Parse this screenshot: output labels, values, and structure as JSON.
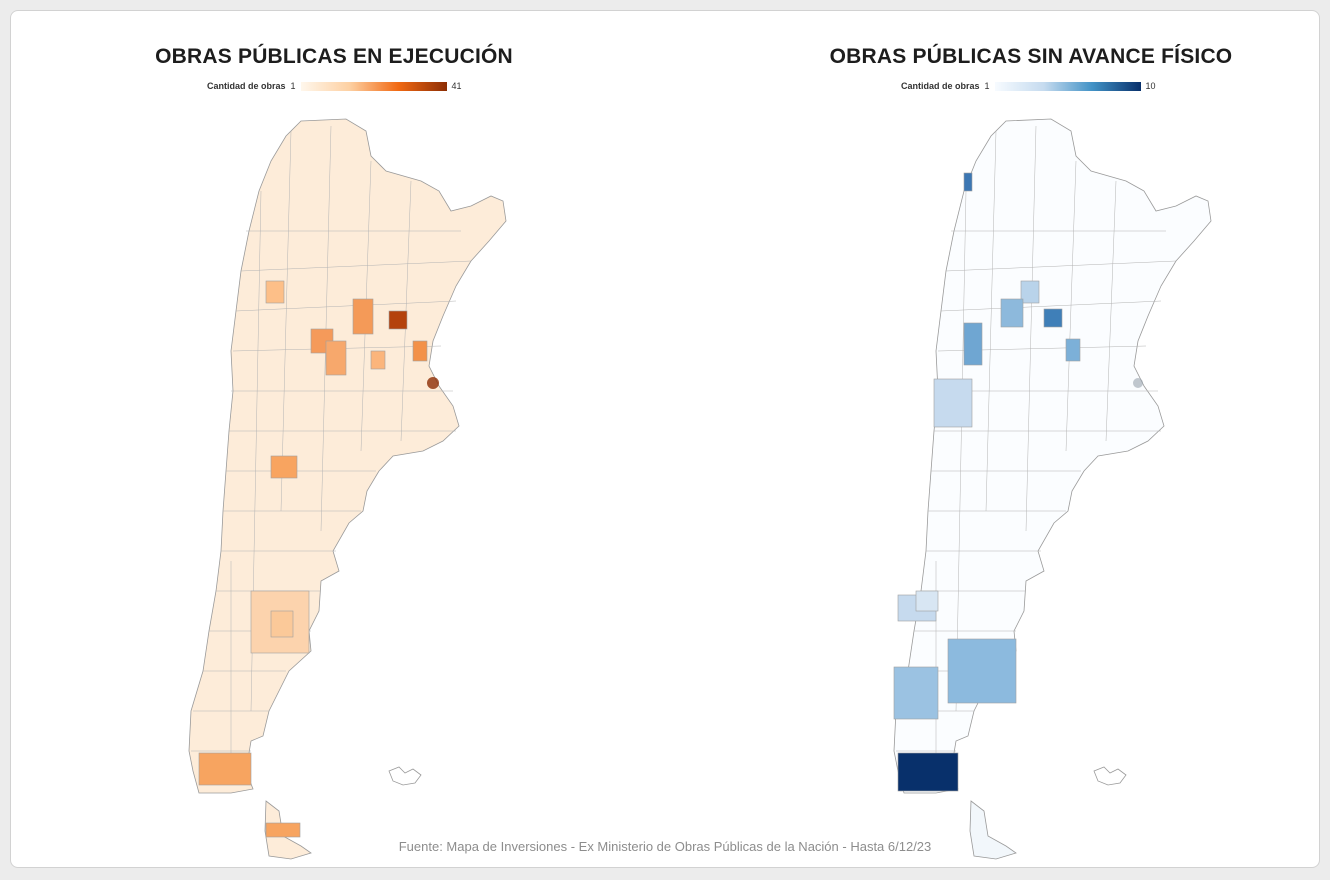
{
  "maps": [
    {
      "title": "OBRAS PÚBLICAS EN EJECUCIÓN",
      "legend_label": "Cantidad de obras",
      "legend_min": "1",
      "legend_max": "41",
      "scale_colors": [
        "#fff7ec",
        "#fdd0a2",
        "#f16913",
        "#8c2d04"
      ]
    },
    {
      "title": "OBRAS PÚBLICAS SIN AVANCE FÍSICO",
      "legend_label": "Cantidad de obras",
      "legend_min": "1",
      "legend_max": "10",
      "scale_colors": [
        "#f7fbff",
        "#c6dbef",
        "#4292c6",
        "#08306b"
      ]
    }
  ],
  "source": "Fuente: Mapa de Inversiones - Ex Ministerio de Obras Públicas de la Nación - Hasta 6/12/23"
}
